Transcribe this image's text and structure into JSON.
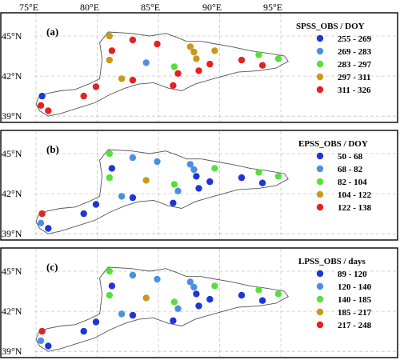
{
  "lon_ticks": [
    "75°E",
    "80°E",
    "85°E",
    "90°E",
    "95°E"
  ],
  "lat_ticks": [
    "45°N",
    "42°N",
    "39°N"
  ],
  "panels": [
    {
      "tag": "(a)",
      "legend_title": "SPSS_OBS / DOY",
      "classes": [
        {
          "label": "255 - 269",
          "color": "#1f35d6"
        },
        {
          "label": "269 - 283",
          "color": "#4a90e2"
        },
        {
          "label": "283 - 297",
          "color": "#56e03a"
        },
        {
          "label": "297 - 311",
          "color": "#c89a16"
        },
        {
          "label": "311 - 326",
          "color": "#e32222"
        }
      ]
    },
    {
      "tag": "(b)",
      "legend_title": "EPSS_OBS / DOY",
      "classes": [
        {
          "label": "50 - 68",
          "color": "#1f35d6"
        },
        {
          "label": "68 - 82",
          "color": "#4a90e2"
        },
        {
          "label": "82 - 104",
          "color": "#56e03a"
        },
        {
          "label": "104 - 122",
          "color": "#c89a16"
        },
        {
          "label": "122 - 138",
          "color": "#e32222"
        }
      ]
    },
    {
      "tag": "(c)",
      "legend_title": "LPSS_OBS / days",
      "classes": [
        {
          "label": "89 - 120",
          "color": "#1f35d6"
        },
        {
          "label": "120 - 140",
          "color": "#4a90e2"
        },
        {
          "label": "140 - 185",
          "color": "#56e03a"
        },
        {
          "label": "185 - 217",
          "color": "#c89a16"
        },
        {
          "label": "217 - 248",
          "color": "#e32222"
        }
      ]
    }
  ],
  "stations": {
    "lonlat": [
      [
        81.0,
        45.0
      ],
      [
        82.9,
        44.7
      ],
      [
        84.9,
        44.4
      ],
      [
        81.2,
        43.9
      ],
      [
        84.0,
        43.0
      ],
      [
        81.0,
        43.2
      ],
      [
        86.3,
        42.7
      ],
      [
        87.6,
        44.2
      ],
      [
        87.9,
        43.8
      ],
      [
        88.1,
        43.3
      ],
      [
        89.6,
        43.9
      ],
      [
        88.3,
        42.4
      ],
      [
        89.2,
        42.9
      ],
      [
        91.8,
        43.2
      ],
      [
        93.2,
        43.6
      ],
      [
        94.8,
        43.3
      ],
      [
        93.5,
        42.8
      ],
      [
        86.6,
        42.2
      ],
      [
        82.0,
        41.8
      ],
      [
        82.9,
        41.7
      ],
      [
        86.2,
        41.3
      ],
      [
        79.9,
        41.2
      ],
      [
        78.9,
        40.5
      ],
      [
        75.5,
        40.5
      ],
      [
        75.4,
        39.8
      ],
      [
        76.0,
        39.4
      ]
    ],
    "panel_a": [
      3,
      4,
      4,
      4,
      1,
      3,
      2,
      3,
      3,
      3,
      3,
      4,
      4,
      4,
      2,
      2,
      4,
      4,
      3,
      4,
      4,
      4,
      4,
      0,
      4,
      4
    ],
    "panel_b": [
      2,
      1,
      1,
      0,
      3,
      2,
      2,
      1,
      1,
      0,
      2,
      0,
      0,
      0,
      2,
      2,
      0,
      1,
      1,
      0,
      0,
      0,
      0,
      4,
      1,
      0
    ],
    "panel_c": [
      2,
      1,
      1,
      0,
      3,
      2,
      2,
      1,
      1,
      0,
      2,
      0,
      0,
      0,
      2,
      2,
      0,
      1,
      1,
      0,
      0,
      0,
      0,
      4,
      1,
      0
    ]
  }
}
